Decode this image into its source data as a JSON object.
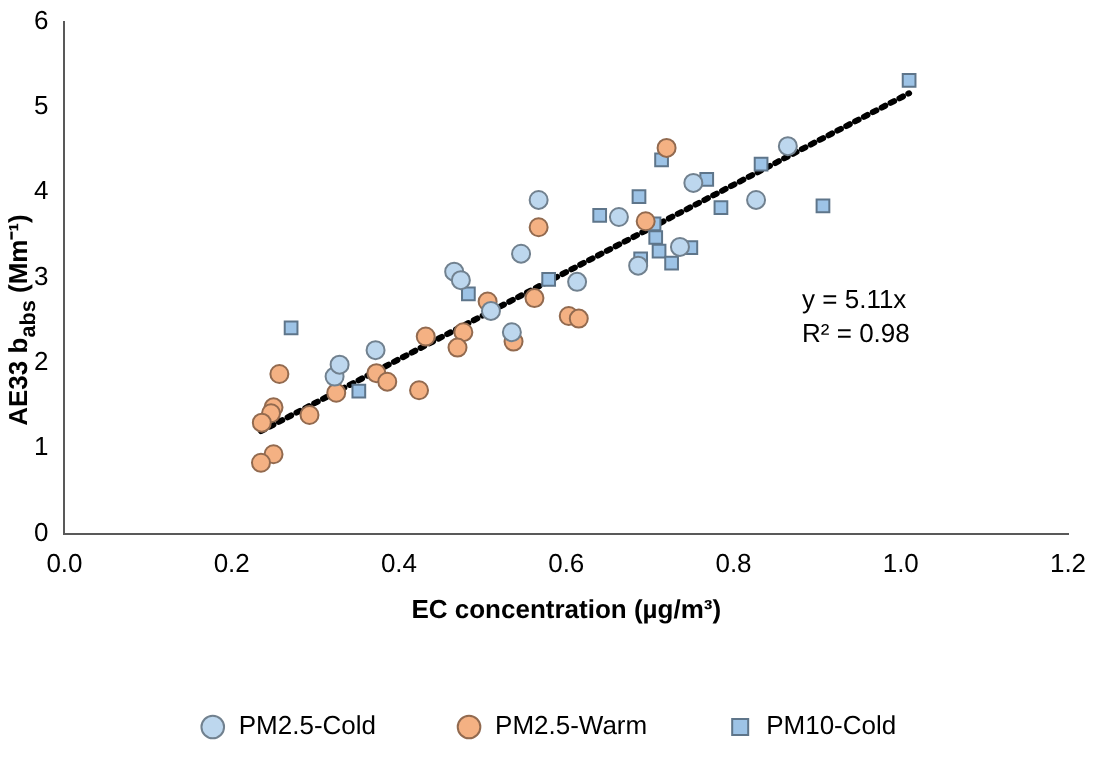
{
  "chart_data": {
    "type": "scatter",
    "xlabel": "EC concentration (µg/m³)",
    "ylabel": "AE33 b$_{abs}$ (Mm⁻¹)",
    "xlim": [
      0,
      1.2
    ],
    "xticks": [
      {
        "value": 0,
        "label": "0.0"
      },
      {
        "value": 0.2,
        "label": "0.2"
      },
      {
        "value": 0.4,
        "label": "0.4"
      },
      {
        "value": 0.6,
        "label": "0.6"
      },
      {
        "value": 0.8,
        "label": "0.8"
      },
      {
        "value": 1,
        "label": "1.0"
      },
      {
        "value": 1.2,
        "label": "1.2"
      }
    ],
    "ylim": [
      0,
      6
    ],
    "yticks": [
      0,
      1,
      2,
      3,
      4,
      5,
      6
    ],
    "grid": false,
    "legend": "bottom",
    "series": [
      {
        "name": "PM2.5-Cold",
        "color": "#bdd7ee",
        "marker": "circle",
        "x": [
          0.323,
          0.329,
          0.372,
          0.466,
          0.474,
          0.51,
          0.535,
          0.546,
          0.567,
          0.613,
          0.663,
          0.686,
          0.736,
          0.752,
          0.827,
          0.865
        ],
        "values": [
          1.84,
          1.98,
          2.15,
          3.07,
          2.97,
          2.61,
          2.36,
          3.28,
          3.91,
          2.95,
          3.71,
          3.14,
          3.36,
          4.11,
          3.91,
          4.54
        ]
      },
      {
        "name": "PM2.5-Warm",
        "color": "#f4b183",
        "marker": "circle",
        "x": [
          0.257,
          0.25,
          0.247,
          0.236,
          0.25,
          0.235,
          0.293,
          0.325,
          0.373,
          0.386,
          0.424,
          0.432,
          0.477,
          0.47,
          0.506,
          0.562,
          0.567,
          0.603,
          0.615,
          0.537,
          0.72,
          0.695
        ],
        "values": [
          1.87,
          1.48,
          1.41,
          1.3,
          0.93,
          0.83,
          1.39,
          1.65,
          1.88,
          1.78,
          1.68,
          2.31,
          2.36,
          2.18,
          2.72,
          2.76,
          3.59,
          2.55,
          2.52,
          2.25,
          4.52,
          3.66
        ]
      },
      {
        "name": "PM10-Cold",
        "color": "#9dc3e6",
        "marker": "square",
        "x": [
          0.271,
          0.352,
          0.483,
          0.579,
          0.714,
          0.768,
          0.687,
          0.64,
          0.705,
          0.707,
          0.711,
          0.689,
          0.726,
          0.749,
          0.785,
          0.833,
          0.907,
          1.01
        ],
        "values": [
          2.41,
          1.67,
          2.81,
          2.98,
          4.38,
          4.15,
          3.95,
          3.73,
          3.63,
          3.47,
          3.31,
          3.22,
          3.17,
          3.35,
          3.82,
          4.33,
          3.84,
          5.31
        ]
      },
      {
        "type": "line",
        "color": "#000000",
        "line_style": "dotted",
        "marker": "none",
        "x": [
          0.235,
          1.01
        ],
        "values": [
          1.2,
          5.16
        ]
      }
    ],
    "annotations": [
      "y = 5.11x",
      "R² = 0.98"
    ]
  }
}
